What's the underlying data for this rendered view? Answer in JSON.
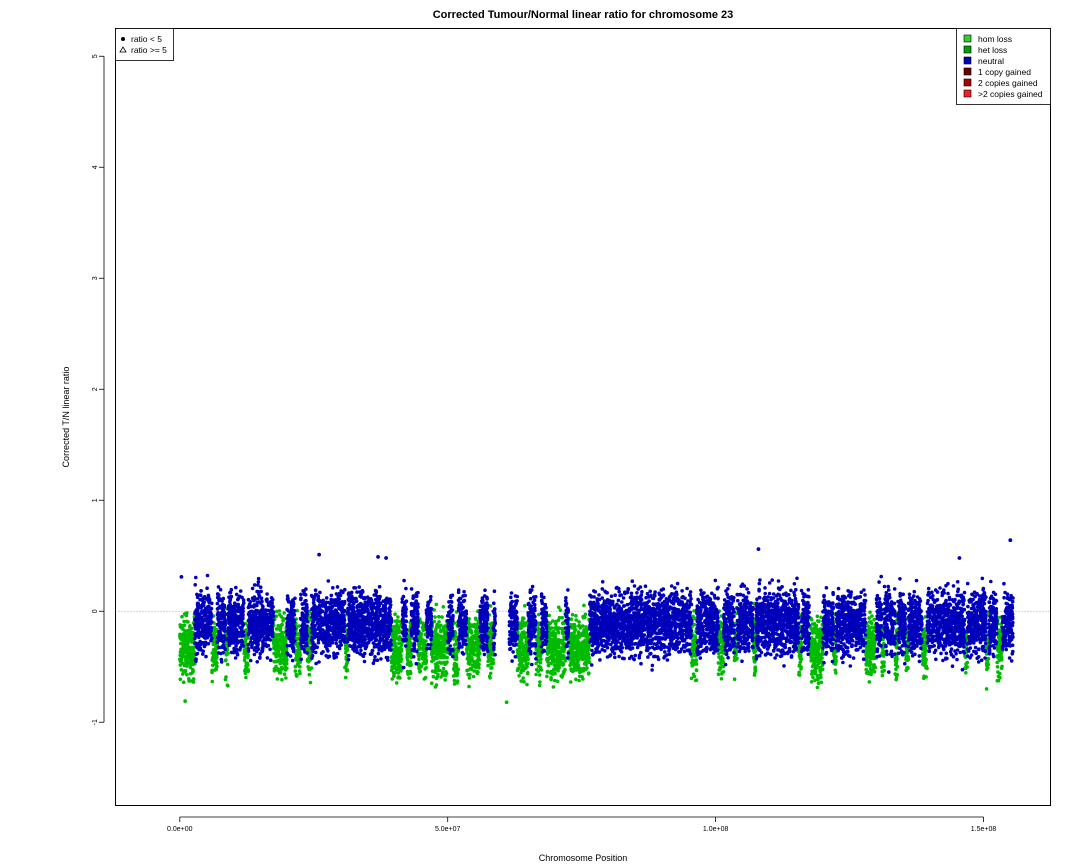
{
  "chart_data": {
    "type": "scatter",
    "title": "Corrected Tumour/Normal linear ratio for chromosome  23",
    "xlabel": "Chromosome Position",
    "ylabel": "Corrected T/N linear ratio",
    "xlim": [
      -12000000,
      162500000
    ],
    "ylim": [
      -1.75,
      5.25
    ],
    "x_ticks": [
      {
        "value": 0,
        "label": "0.0e+00"
      },
      {
        "value": 50000000,
        "label": "5.0e+07"
      },
      {
        "value": 100000000,
        "label": "1.0e+08"
      },
      {
        "value": 150000000,
        "label": "1.5e+08"
      }
    ],
    "y_ticks": [
      {
        "value": -1,
        "label": "-1"
      },
      {
        "value": 0,
        "label": "0"
      },
      {
        "value": 1,
        "label": "1"
      },
      {
        "value": 2,
        "label": "2"
      },
      {
        "value": 3,
        "label": "3"
      },
      {
        "value": 4,
        "label": "4"
      },
      {
        "value": 5,
        "label": "5"
      }
    ],
    "reference_line": {
      "y": 0,
      "style": "dotted",
      "color": "#888888"
    },
    "grid": false,
    "shape_legend": {
      "placement": "top-left",
      "items": [
        {
          "label": "ratio < 5",
          "symbol": "filled-circle"
        },
        {
          "label": "ratio >= 5",
          "symbol": "open-triangle"
        }
      ]
    },
    "state_legend": {
      "placement": "top-right",
      "items": [
        {
          "label": "hom loss",
          "color": "#33cc33"
        },
        {
          "label": "het loss",
          "color": "#00a000"
        },
        {
          "label": "neutral",
          "color": "#0000bb"
        },
        {
          "label": "1 copy gained",
          "color": "#6b0000"
        },
        {
          "label": "2 copies gained",
          "color": "#aa0000"
        },
        {
          "label": ">2 copies gained",
          "color": "#ee2222"
        }
      ]
    },
    "series": [
      {
        "name": "het loss",
        "color": "#00bb00",
        "value_range": [
          -0.8,
          0.3
        ],
        "segments": [
          [
            0,
            2800000
          ],
          [
            6000000,
            7000000
          ],
          [
            8500000,
            9000000
          ],
          [
            12000000,
            12800000
          ],
          [
            17500000,
            20000000
          ],
          [
            21500000,
            22500000
          ],
          [
            23800000,
            24600000
          ],
          [
            30800000,
            31300000
          ],
          [
            39500000,
            41500000
          ],
          [
            42300000,
            43200000
          ],
          [
            44500000,
            46000000
          ],
          [
            47000000,
            50000000
          ],
          [
            51000000,
            52000000
          ],
          [
            53500000,
            56000000
          ],
          [
            57500000,
            58500000
          ],
          [
            63000000,
            65000000
          ],
          [
            66500000,
            67500000
          ],
          [
            68500000,
            72000000
          ],
          [
            72600000,
            76500000
          ],
          [
            95500000,
            96500000
          ],
          [
            100500000,
            101500000
          ],
          [
            103500000,
            104000000
          ],
          [
            107000000,
            107500000
          ],
          [
            115500000,
            116000000
          ],
          [
            117500000,
            120000000
          ],
          [
            122000000,
            122500000
          ],
          [
            128000000,
            130000000
          ],
          [
            131000000,
            131500000
          ],
          [
            133500000,
            134000000
          ],
          [
            135500000,
            136000000
          ],
          [
            138500000,
            139500000
          ],
          [
            146500000,
            147000000
          ],
          [
            150500000,
            151000000
          ],
          [
            152500000,
            153500000
          ]
        ]
      },
      {
        "name": "neutral",
        "color": "#0000bb",
        "value_range": [
          -0.6,
          0.55
        ],
        "segments": [
          [
            2800000,
            6000000
          ],
          [
            7000000,
            8500000
          ],
          [
            9000000,
            12000000
          ],
          [
            12800000,
            17500000
          ],
          [
            20000000,
            21500000
          ],
          [
            22500000,
            23800000
          ],
          [
            24600000,
            30800000
          ],
          [
            31300000,
            39500000
          ],
          [
            41500000,
            42300000
          ],
          [
            43200000,
            44500000
          ],
          [
            46000000,
            47000000
          ],
          [
            50000000,
            51000000
          ],
          [
            52000000,
            53500000
          ],
          [
            56000000,
            57500000
          ],
          [
            58500000,
            58900000
          ],
          [
            61500000,
            63000000
          ],
          [
            65000000,
            66500000
          ],
          [
            67500000,
            68500000
          ],
          [
            72000000,
            72600000
          ],
          [
            76500000,
            95500000
          ],
          [
            96500000,
            100500000
          ],
          [
            101500000,
            103500000
          ],
          [
            104000000,
            107000000
          ],
          [
            107500000,
            115500000
          ],
          [
            116000000,
            117500000
          ],
          [
            120000000,
            122000000
          ],
          [
            122500000,
            128000000
          ],
          [
            130000000,
            131000000
          ],
          [
            131500000,
            133500000
          ],
          [
            134000000,
            135500000
          ],
          [
            136000000,
            138500000
          ],
          [
            139500000,
            146500000
          ],
          [
            147000000,
            150500000
          ],
          [
            151000000,
            152500000
          ],
          [
            153500000,
            155500000
          ]
        ]
      }
    ],
    "outliers": [
      {
        "x": 300000,
        "y": 0.31
      },
      {
        "x": 26000000,
        "y": 0.51
      },
      {
        "x": 37000000,
        "y": 0.49
      },
      {
        "x": 38500000,
        "y": 0.48
      },
      {
        "x": 108000000,
        "y": 0.56
      },
      {
        "x": 145500000,
        "y": 0.48
      },
      {
        "x": 155000000,
        "y": 0.64
      },
      {
        "x": 61000000,
        "y": -0.82
      },
      {
        "x": 1000000,
        "y": -0.81
      }
    ]
  }
}
